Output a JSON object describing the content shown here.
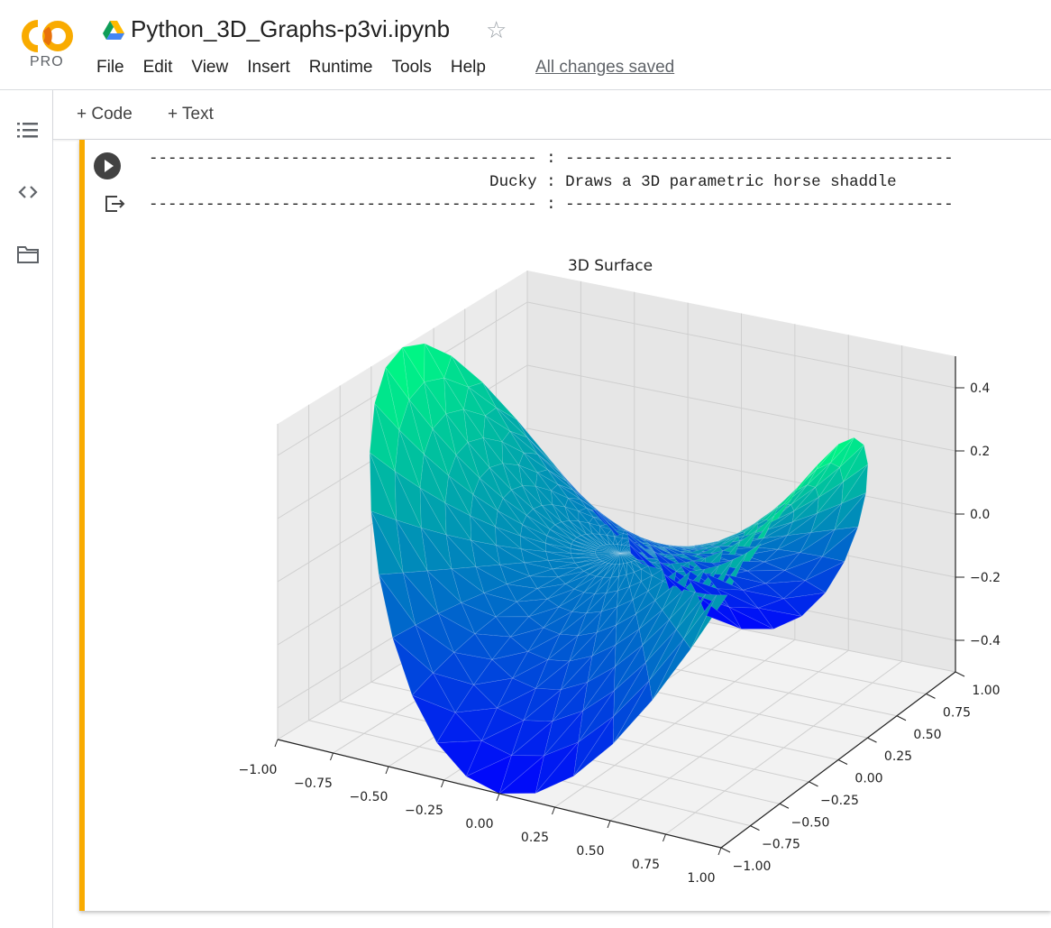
{
  "header": {
    "logo_text": "CO",
    "pro_label": "PRO",
    "notebook_title": "Python_3D_Graphs-p3vi.ipynb",
    "drive_icon": "google-drive-icon",
    "star_icon": "star-outline-icon",
    "menu": [
      "File",
      "Edit",
      "View",
      "Insert",
      "Runtime",
      "Tools",
      "Help"
    ],
    "save_status": "All changes saved"
  },
  "sidebar": {
    "icons": [
      "table-of-contents-icon",
      "code-snippets-icon",
      "folder-icon"
    ]
  },
  "toolbar": {
    "add_code": "+ Code",
    "add_text": "+ Text"
  },
  "cell": {
    "output_lines": [
      "----------------------------------------- : -----------------------------------------",
      "                                    Ducky : Draws a 3D parametric horse shaddle",
      "----------------------------------------- : -----------------------------------------"
    ]
  },
  "chart_data": {
    "type": "surface",
    "title": "3D Surface",
    "colormap": "winter",
    "x_ticks": [
      "−1.00",
      "−0.75",
      "−0.50",
      "−0.25",
      "0.00",
      "0.25",
      "0.50",
      "0.75",
      "1.00"
    ],
    "y_ticks": [
      "−1.00",
      "−0.75",
      "−0.50",
      "−0.25",
      "0.00",
      "0.25",
      "0.50",
      "0.75",
      "1.00"
    ],
    "z_ticks": [
      "−0.4",
      "−0.2",
      "0.0",
      "0.2",
      "0.4"
    ],
    "xlim": [
      -1,
      1
    ],
    "ylim": [
      -1,
      1
    ],
    "zlim": [
      -0.5,
      0.5
    ],
    "function": "z = x^2 - y^2 (parametric saddle)",
    "grid": true
  },
  "colors": {
    "accent_bar": "#f9ab00",
    "low": "#0000ff",
    "high": "#00ff80"
  }
}
